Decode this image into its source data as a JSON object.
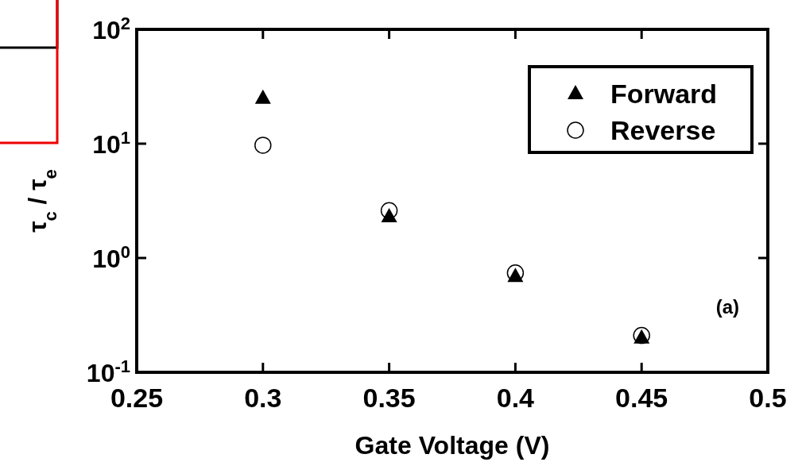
{
  "chart_data": {
    "type": "scatter",
    "xlabel": "Gate Voltage (V)",
    "ylabel": "τ$_{c}$ / τ$_{e}$",
    "x": [
      0.3,
      0.35,
      0.4,
      0.45
    ],
    "series": [
      {
        "name": "Forward",
        "color": "#000000",
        "marker": "triangle",
        "values": [
          25,
          2.3,
          0.69,
          0.2
        ]
      },
      {
        "name": "Reverse",
        "color": "#000000",
        "marker": "circle",
        "values": [
          9.7,
          2.6,
          0.74,
          0.21
        ]
      }
    ],
    "xlim": [
      0.25,
      0.5
    ],
    "xticks": [
      0.25,
      0.3,
      0.35,
      0.4,
      0.45,
      0.5
    ],
    "ylim": [
      0.1,
      100
    ],
    "yticks": [
      {
        "value": 0.1,
        "label": "10$^{-1}$"
      },
      {
        "value": 1,
        "label": "10$^{0}$"
      },
      {
        "value": 10,
        "label": "10$^{1}$"
      },
      {
        "value": 100,
        "label": "10$^{2}$"
      }
    ],
    "log": "y",
    "grid": false,
    "legend": "top right",
    "annotations": [
      "(a)"
    ]
  }
}
